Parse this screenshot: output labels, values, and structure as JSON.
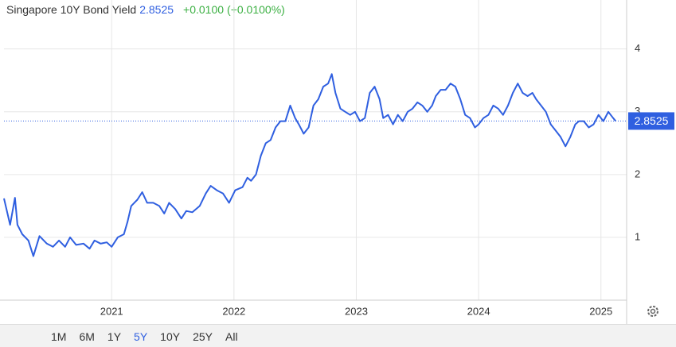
{
  "chart_data": {
    "type": "line",
    "title": "Singapore 10Y Bond Yield",
    "change": "+0.0100",
    "change_pct": "(+0.0100%)",
    "x": [
      2020.12,
      2020.17,
      2020.21,
      2020.23,
      2020.27,
      2020.32,
      2020.36,
      2020.41,
      2020.47,
      2020.52,
      2020.57,
      2020.62,
      2020.66,
      2020.71,
      2020.77,
      2020.82,
      2020.86,
      2020.91,
      2020.96,
      2021.0,
      2021.05,
      2021.1,
      2021.13,
      2021.16,
      2021.21,
      2021.25,
      2021.29,
      2021.34,
      2021.39,
      2021.43,
      2021.47,
      2021.52,
      2021.57,
      2021.61,
      2021.66,
      2021.72,
      2021.77,
      2021.81,
      2021.86,
      2021.91,
      2021.96,
      2022.01,
      2022.07,
      2022.11,
      2022.14,
      2022.18,
      2022.22,
      2022.26,
      2022.3,
      2022.34,
      2022.38,
      2022.42,
      2022.46,
      2022.5,
      2022.53,
      2022.57,
      2022.61,
      2022.65,
      2022.69,
      2022.73,
      2022.77,
      2022.8,
      2022.83,
      2022.87,
      2022.91,
      2022.95,
      2022.99,
      2023.03,
      2023.07,
      2023.11,
      2023.15,
      2023.19,
      2023.22,
      2023.26,
      2023.3,
      2023.34,
      2023.38,
      2023.42,
      2023.46,
      2023.5,
      2023.54,
      2023.58,
      2023.62,
      2023.65,
      2023.69,
      2023.73,
      2023.77,
      2023.81,
      2023.85,
      2023.89,
      2023.93,
      2023.97,
      2024.0,
      2024.04,
      2024.08,
      2024.12,
      2024.16,
      2024.2,
      2024.24,
      2024.28,
      2024.32,
      2024.36,
      2024.4,
      2024.44,
      2024.47,
      2024.51,
      2024.55,
      2024.59,
      2024.63,
      2024.67,
      2024.71,
      2024.75,
      2024.79,
      2024.82,
      2024.86,
      2024.9,
      2024.94,
      2024.98,
      2025.02,
      2025.06,
      2025.1,
      2025.12
    ],
    "series": [
      {
        "name": "Singapore 10Y Bond Yield",
        "color": "#2f5fe0",
        "values": [
          1.62,
          1.2,
          1.63,
          1.2,
          1.05,
          0.95,
          0.7,
          1.02,
          0.9,
          0.85,
          0.95,
          0.85,
          1.0,
          0.88,
          0.9,
          0.82,
          0.95,
          0.9,
          0.92,
          0.85,
          1.0,
          1.05,
          1.25,
          1.5,
          1.6,
          1.72,
          1.55,
          1.55,
          1.5,
          1.38,
          1.55,
          1.45,
          1.3,
          1.42,
          1.4,
          1.5,
          1.7,
          1.82,
          1.75,
          1.7,
          1.55,
          1.75,
          1.8,
          1.95,
          1.9,
          2.0,
          2.3,
          2.5,
          2.55,
          2.75,
          2.85,
          2.85,
          3.1,
          2.9,
          2.8,
          2.65,
          2.75,
          3.1,
          3.2,
          3.4,
          3.45,
          3.6,
          3.3,
          3.05,
          3.0,
          2.95,
          3.0,
          2.85,
          2.9,
          3.3,
          3.4,
          3.2,
          2.9,
          2.95,
          2.8,
          2.95,
          2.85,
          3.0,
          3.05,
          3.15,
          3.1,
          3.0,
          3.1,
          3.25,
          3.35,
          3.35,
          3.45,
          3.4,
          3.2,
          2.95,
          2.9,
          2.75,
          2.8,
          2.9,
          2.95,
          3.1,
          3.05,
          2.95,
          3.1,
          3.3,
          3.45,
          3.3,
          3.25,
          3.3,
          3.2,
          3.1,
          3.0,
          2.8,
          2.7,
          2.6,
          2.45,
          2.6,
          2.8,
          2.85,
          2.85,
          2.75,
          2.8,
          2.95,
          2.85,
          3.0,
          2.9,
          2.8525
        ]
      }
    ],
    "xlim": [
      2020.12,
      2025.21
    ],
    "xticks": [
      2021,
      2022,
      2023,
      2024,
      2025
    ],
    "ylim": [
      0,
      4.78
    ],
    "yticks": [
      1,
      2,
      3,
      4
    ],
    "grid": true
  },
  "range_buttons": {
    "items": [
      "1M",
      "6M",
      "1Y",
      "5Y",
      "10Y",
      "25Y",
      "All"
    ],
    "active": "5Y"
  }
}
